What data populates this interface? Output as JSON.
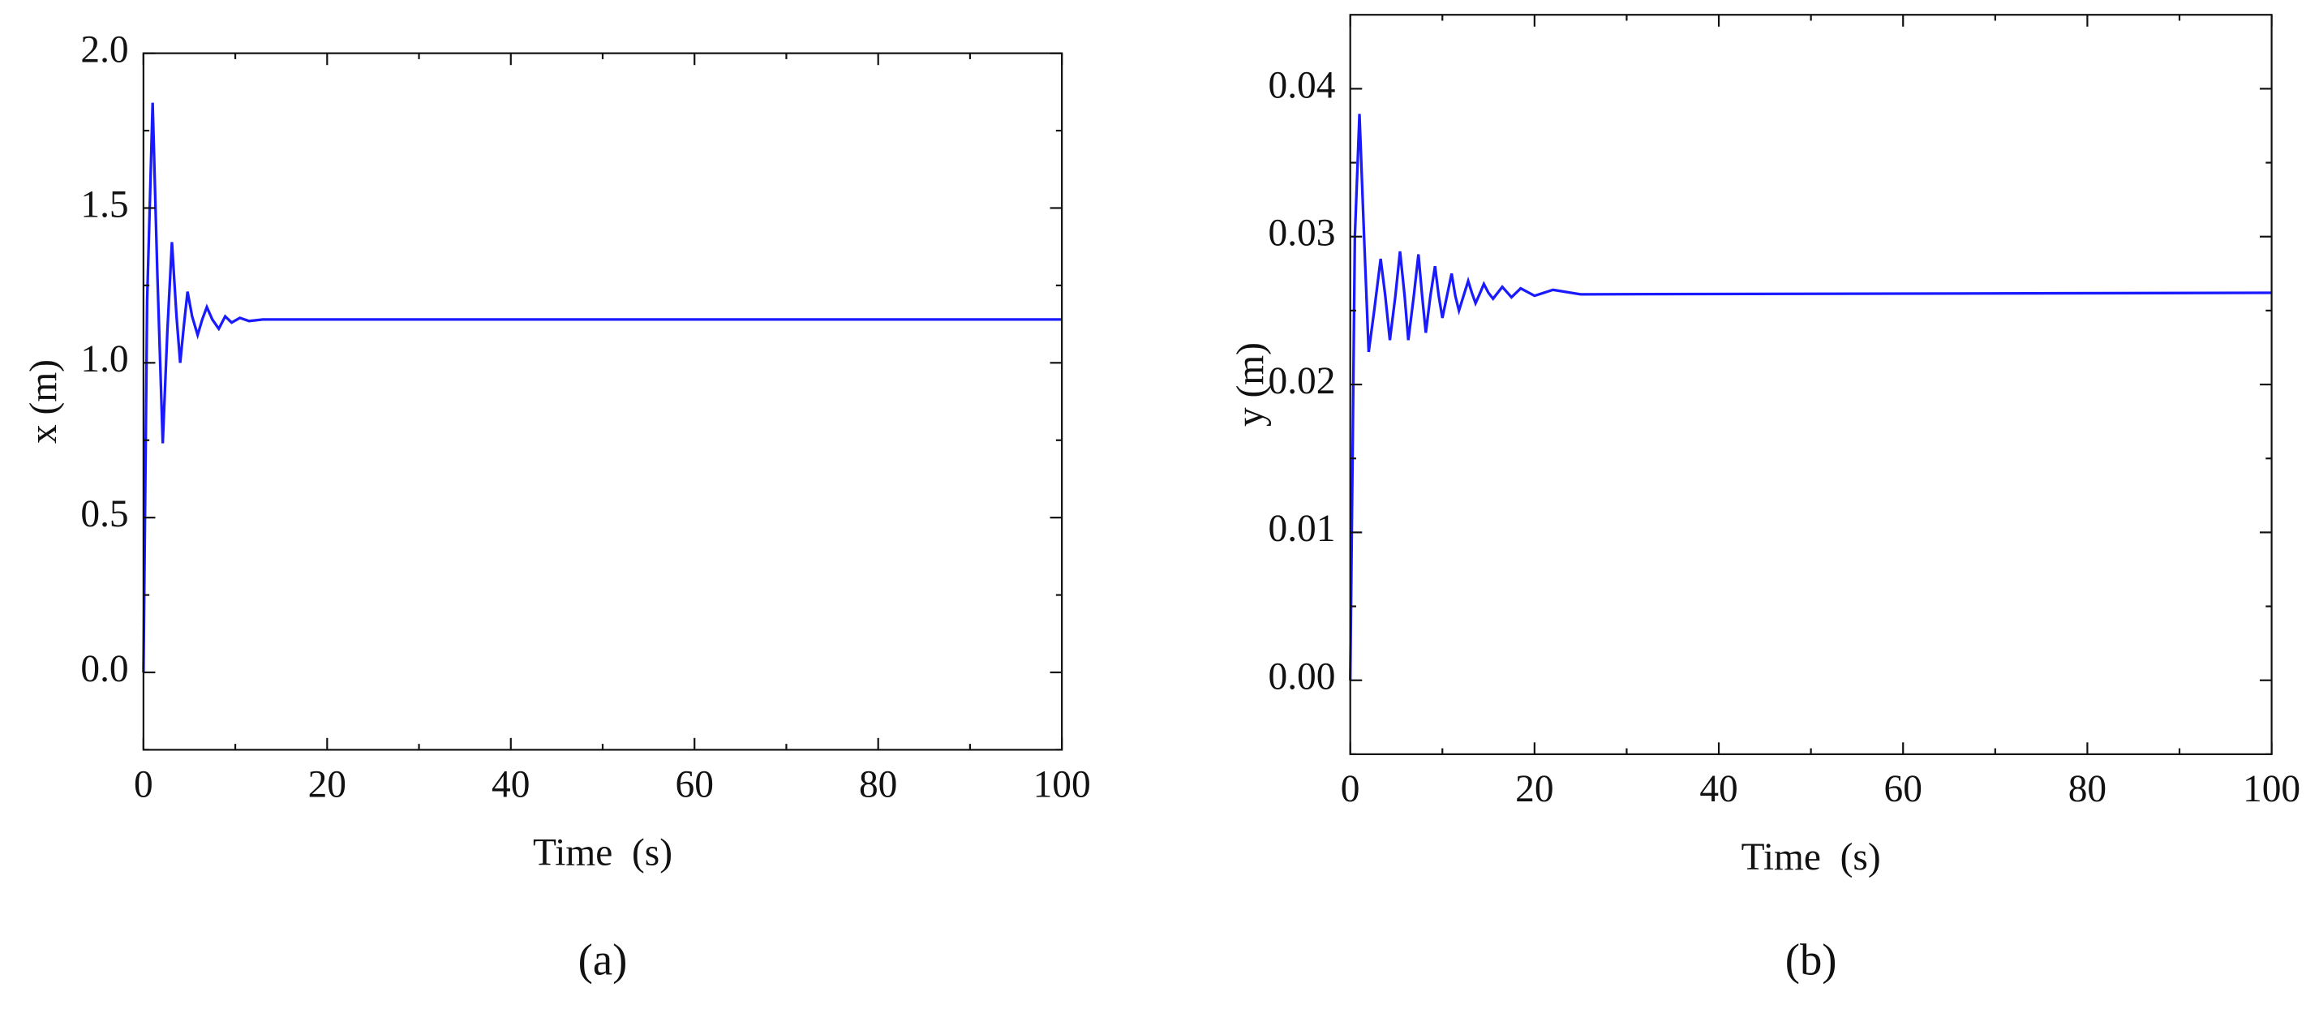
{
  "chart_data": [
    {
      "type": "line",
      "caption": "(a)",
      "x_label": "Time  (s)",
      "y_label": "x (m)",
      "xlim": [
        0,
        100
      ],
      "xticks": [
        0,
        20,
        40,
        60,
        80,
        100
      ],
      "ylim": [
        -0.25,
        2.0
      ],
      "yticks": [
        {
          "value": 0,
          "label": "0.0"
        },
        0.5,
        {
          "value": 1,
          "label": "1.0"
        },
        1.5,
        {
          "value": 2,
          "label": "2.0"
        }
      ],
      "series": [
        {
          "color": "#1a1aff",
          "x": [
            0,
            0.4,
            1.0,
            1.5,
            2.1,
            2.6,
            3.1,
            3.6,
            4.0,
            4.4,
            4.8,
            5.3,
            5.9,
            6.4,
            6.9,
            7.5,
            8.2,
            8.9,
            9.6,
            10.5,
            11.5,
            13,
            100
          ],
          "values": [
            0,
            1.2,
            1.84,
            1.3,
            0.74,
            1.1,
            1.39,
            1.15,
            1.0,
            1.12,
            1.23,
            1.15,
            1.09,
            1.14,
            1.18,
            1.14,
            1.11,
            1.15,
            1.13,
            1.145,
            1.135,
            1.14,
            1.14
          ]
        }
      ]
    },
    {
      "type": "line",
      "caption": "(b)",
      "x_label": "Time  (s)",
      "y_label": "y (m)",
      "xlim": [
        0,
        100
      ],
      "xticks": [
        0,
        20,
        40,
        60,
        80,
        100
      ],
      "ylim": [
        -0.005,
        0.045
      ],
      "yticks": [
        {
          "value": 0,
          "label": "0.00"
        },
        {
          "value": 0.01,
          "label": "0.01"
        },
        {
          "value": 0.02,
          "label": "0.02"
        },
        {
          "value": 0.03,
          "label": "0.03"
        },
        {
          "value": 0.04,
          "label": "0.04"
        }
      ],
      "series": [
        {
          "color": "#1a1aff",
          "x": [
            0,
            0.5,
            1.0,
            1.5,
            2.0,
            2.6,
            3.3,
            3.8,
            4.3,
            4.9,
            5.4,
            5.9,
            6.3,
            6.9,
            7.4,
            7.8,
            8.2,
            8.7,
            9.2,
            9.6,
            10.0,
            10.5,
            11.0,
            11.4,
            11.8,
            12.3,
            12.8,
            13.2,
            13.6,
            14.1,
            14.5,
            15.0,
            15.5,
            16.5,
            17.5,
            18.5,
            20,
            22,
            25,
            100
          ],
          "values": [
            0,
            0.03,
            0.0383,
            0.03,
            0.0222,
            0.025,
            0.0285,
            0.026,
            0.023,
            0.026,
            0.029,
            0.026,
            0.023,
            0.026,
            0.0288,
            0.026,
            0.0235,
            0.026,
            0.028,
            0.026,
            0.0245,
            0.026,
            0.0275,
            0.026,
            0.025,
            0.026,
            0.027,
            0.0262,
            0.0255,
            0.0262,
            0.0268,
            0.0262,
            0.0258,
            0.0266,
            0.0259,
            0.0265,
            0.026,
            0.0264,
            0.0261,
            0.0262
          ]
        }
      ]
    }
  ]
}
